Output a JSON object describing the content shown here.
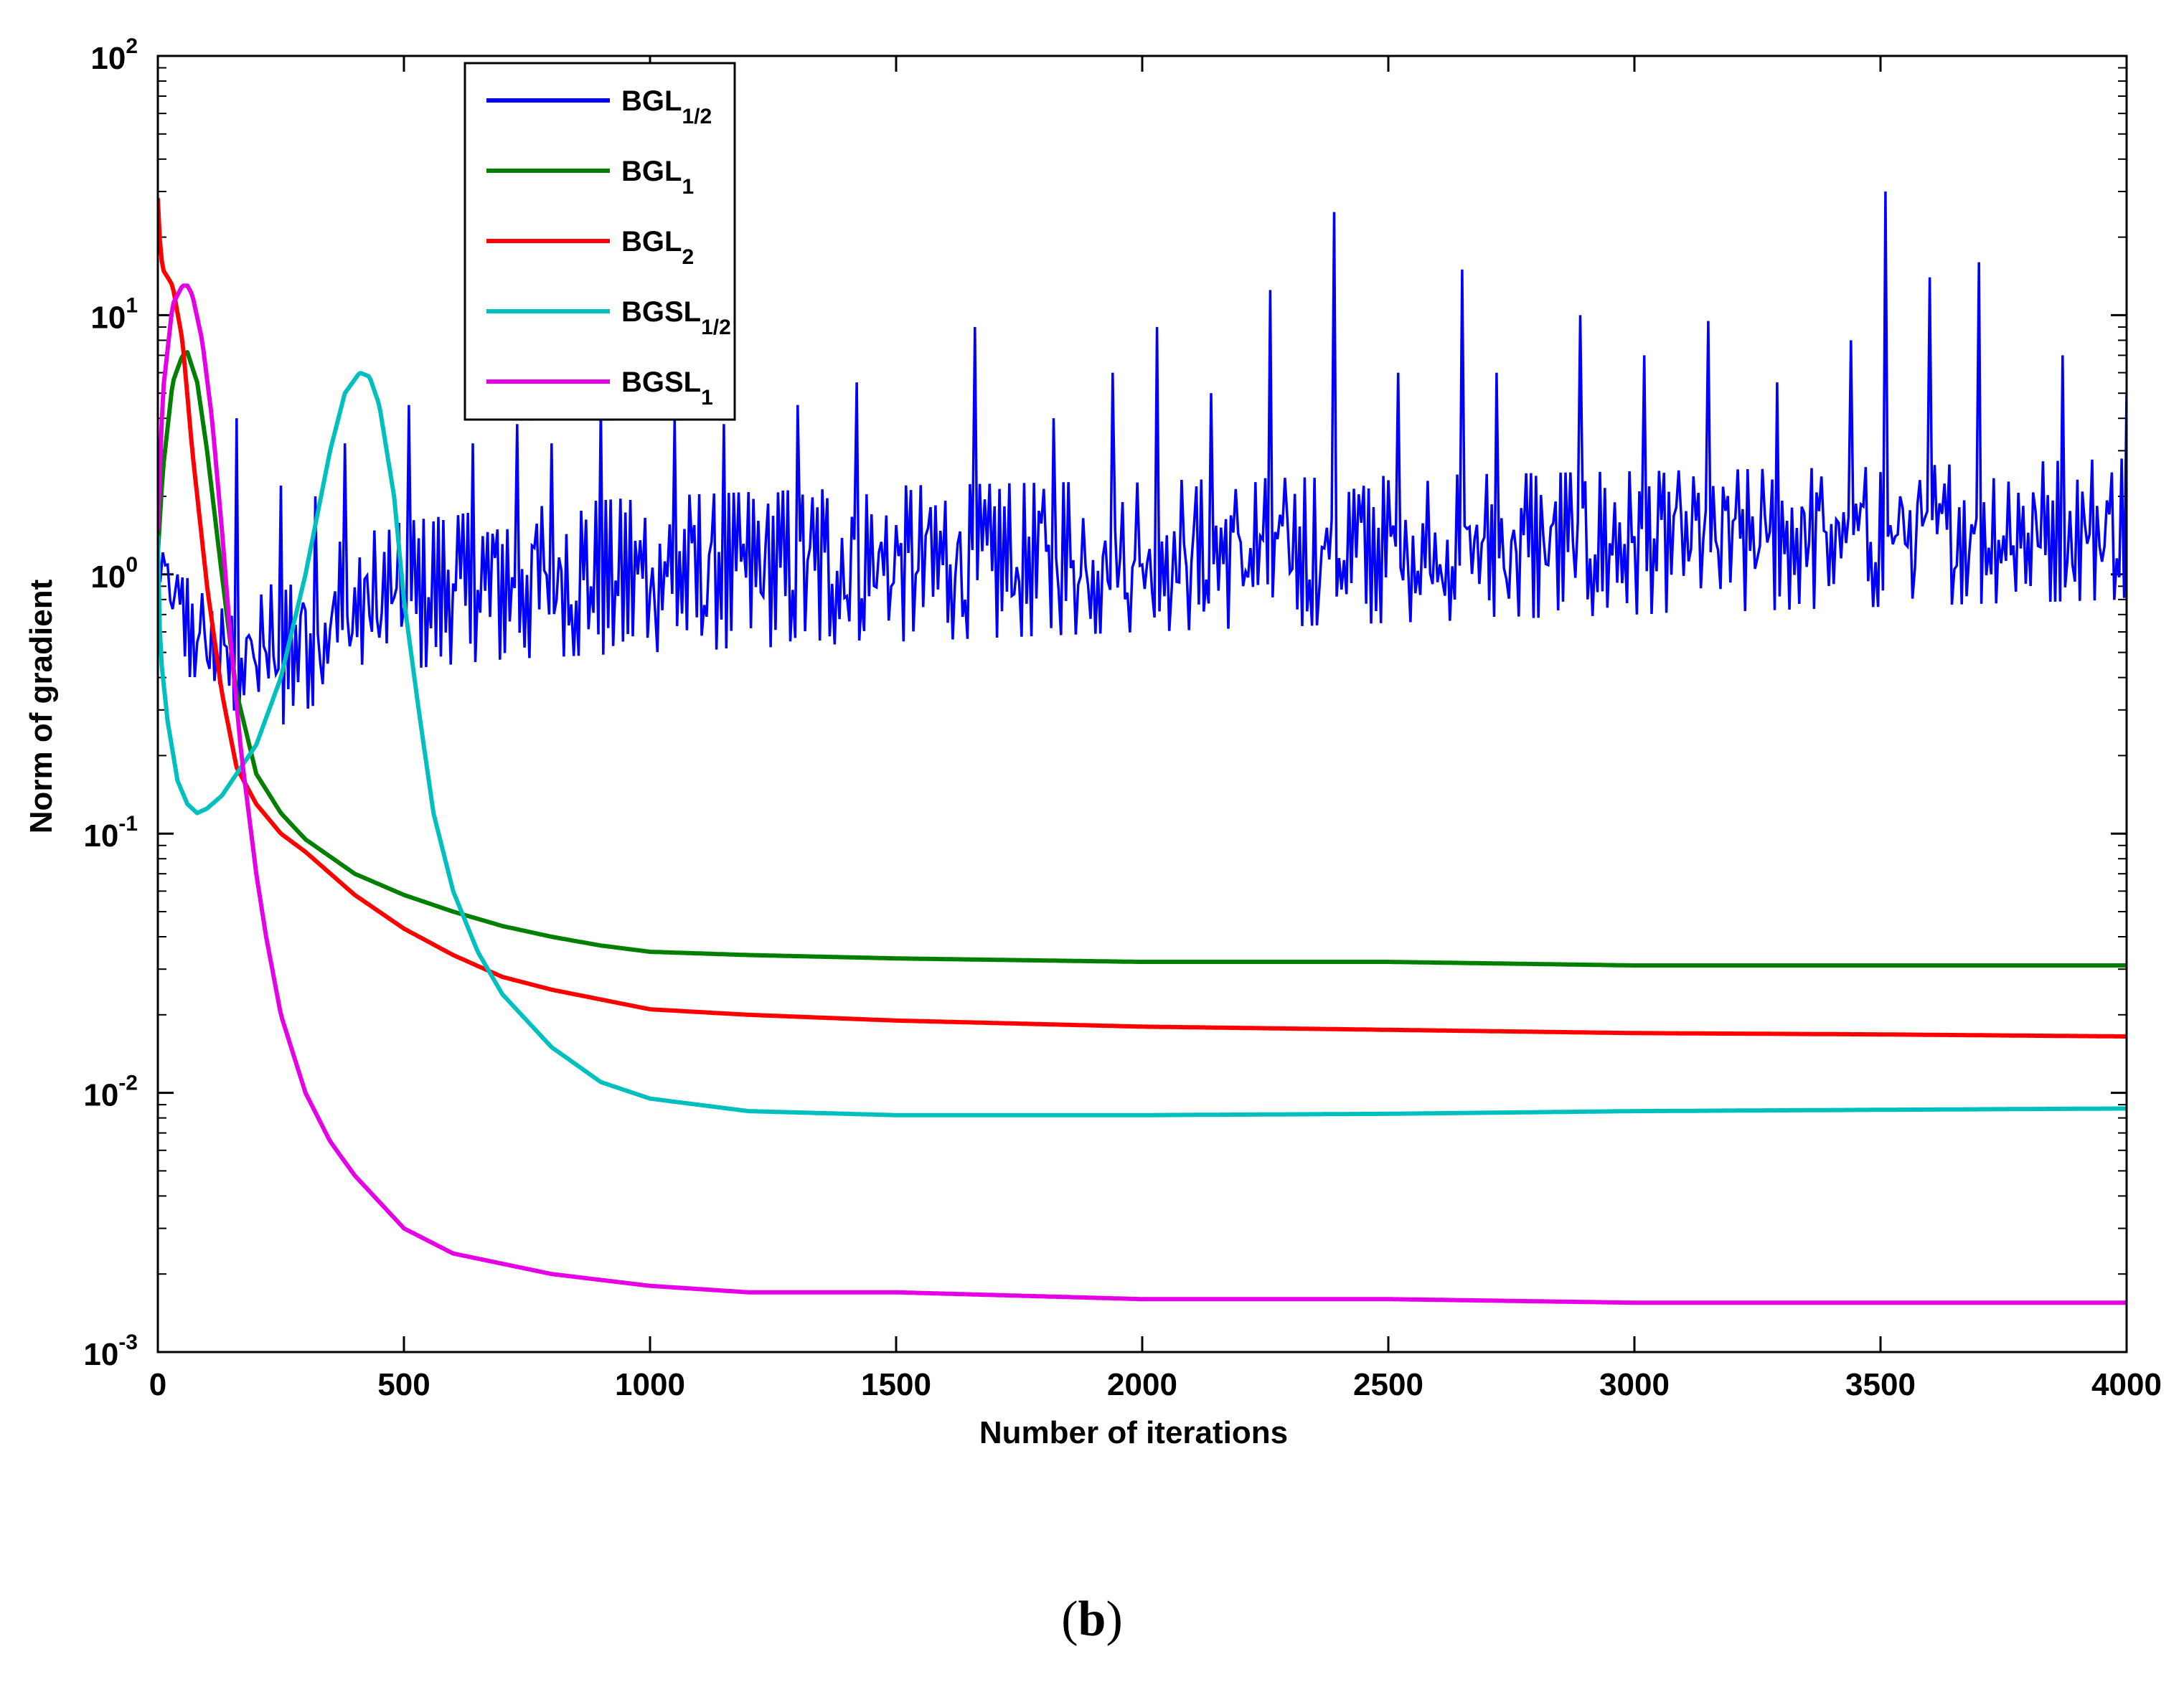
{
  "caption": {
    "prefix": "(",
    "letter": "b",
    "suffix": ")"
  },
  "chart_data": {
    "type": "line",
    "title": "",
    "xlabel": "Number of iterations",
    "ylabel": "Norm of gradient",
    "xlim": [
      0,
      4000
    ],
    "ylim": [
      0.001,
      100
    ],
    "yscale": "log",
    "xticks": [
      0,
      500,
      1000,
      1500,
      2000,
      2500,
      3000,
      3500,
      4000
    ],
    "xtick_labels": [
      "0",
      "500",
      "1000",
      "1500",
      "2000",
      "2500",
      "3000",
      "3500",
      "4000"
    ],
    "yticks": [
      0.001,
      0.01,
      0.1,
      1,
      10,
      100
    ],
    "ytick_labels": [
      {
        "base": "10",
        "exp": "-3"
      },
      {
        "base": "10",
        "exp": "-2"
      },
      {
        "base": "10",
        "exp": "-1"
      },
      {
        "base": "10",
        "exp": "0"
      },
      {
        "base": "10",
        "exp": "1"
      },
      {
        "base": "10",
        "exp": "2"
      }
    ],
    "legend_position": "top-left",
    "series": [
      {
        "name": "BGL1/2",
        "label_main": "BGL",
        "label_sub": "1/2",
        "color": "#0000ff",
        "style": "noisy",
        "x": [
          0,
          20,
          60,
          100,
          150,
          200,
          250,
          300,
          400,
          500,
          700,
          1000,
          1500,
          2000,
          2500,
          3000,
          3500,
          4000
        ],
        "lower": [
          1.0,
          0.6,
          0.4,
          0.35,
          0.3,
          0.27,
          0.26,
          0.3,
          0.38,
          0.43,
          0.47,
          0.5,
          0.55,
          0.6,
          0.65,
          0.7,
          0.75,
          0.8
        ],
        "upper": [
          1.5,
          1.2,
          1.0,
          0.8,
          0.7,
          0.8,
          1.0,
          1.2,
          1.4,
          1.6,
          1.8,
          2.0,
          2.2,
          2.3,
          2.4,
          2.5,
          2.6,
          2.8
        ],
        "spikes": [
          [
            160,
            4
          ],
          [
            250,
            2.2
          ],
          [
            320,
            2.0
          ],
          [
            380,
            3.2
          ],
          [
            510,
            4.5
          ],
          [
            640,
            3.2
          ],
          [
            730,
            3.8
          ],
          [
            800,
            3.2
          ],
          [
            900,
            4.5
          ],
          [
            1050,
            4.0
          ],
          [
            1150,
            3.8
          ],
          [
            1300,
            4.5
          ],
          [
            1420,
            5.5
          ],
          [
            1660,
            9.0
          ],
          [
            1820,
            4.0
          ],
          [
            1940,
            6.0
          ],
          [
            2030,
            9.0
          ],
          [
            2140,
            5.0
          ],
          [
            2260,
            12.5
          ],
          [
            2390,
            25.0
          ],
          [
            2520,
            6.0
          ],
          [
            2650,
            15.0
          ],
          [
            2720,
            6.0
          ],
          [
            2890,
            10.0
          ],
          [
            3020,
            7.0
          ],
          [
            3150,
            9.5
          ],
          [
            3290,
            5.5
          ],
          [
            3440,
            8.0
          ],
          [
            3510,
            30.0
          ],
          [
            3600,
            14.0
          ],
          [
            3700,
            16.0
          ],
          [
            3870,
            7.0
          ],
          [
            4000,
            5.0
          ]
        ]
      },
      {
        "name": "BGL1",
        "label_main": "BGL",
        "label_sub": "1",
        "color": "#007f00",
        "style": "smooth",
        "x": [
          0,
          10,
          30,
          50,
          60,
          80,
          100,
          130,
          160,
          200,
          250,
          300,
          400,
          500,
          600,
          700,
          800,
          900,
          1000,
          1200,
          1500,
          2000,
          2500,
          3000,
          3500,
          4000
        ],
        "y": [
          1.2,
          2.5,
          5.5,
          7.0,
          7.2,
          5.5,
          3.0,
          1.0,
          0.35,
          0.17,
          0.12,
          0.095,
          0.07,
          0.058,
          0.05,
          0.044,
          0.04,
          0.037,
          0.035,
          0.034,
          0.033,
          0.032,
          0.032,
          0.031,
          0.031,
          0.031
        ]
      },
      {
        "name": "BGL2",
        "label_main": "BGL",
        "label_sub": "2",
        "color": "#ff0000",
        "style": "smooth",
        "x": [
          0,
          5,
          10,
          20,
          30,
          50,
          70,
          100,
          130,
          160,
          200,
          250,
          300,
          400,
          500,
          600,
          700,
          800,
          1000,
          1200,
          1500,
          2000,
          2500,
          3000,
          3500,
          4000
        ],
        "y": [
          28,
          18,
          15,
          14,
          13,
          8,
          3.0,
          0.9,
          0.35,
          0.18,
          0.13,
          0.1,
          0.085,
          0.058,
          0.043,
          0.034,
          0.028,
          0.025,
          0.021,
          0.02,
          0.019,
          0.018,
          0.0175,
          0.017,
          0.0168,
          0.0165
        ]
      },
      {
        "name": "BGSL1/2",
        "label_main": "BGSL",
        "label_sub": "1/2",
        "color": "#00bfbf",
        "style": "smooth",
        "x": [
          0,
          5,
          20,
          40,
          60,
          80,
          100,
          130,
          160,
          200,
          250,
          300,
          350,
          380,
          410,
          430,
          450,
          480,
          500,
          530,
          560,
          600,
          650,
          700,
          800,
          900,
          1000,
          1200,
          1500,
          2000,
          2500,
          3000,
          3500,
          4000
        ],
        "y": [
          1.4,
          0.5,
          0.27,
          0.16,
          0.13,
          0.12,
          0.125,
          0.14,
          0.17,
          0.22,
          0.4,
          1.0,
          3.0,
          5.0,
          6.0,
          5.8,
          4.5,
          2.0,
          0.8,
          0.3,
          0.12,
          0.06,
          0.035,
          0.024,
          0.015,
          0.011,
          0.0095,
          0.0085,
          0.0082,
          0.0082,
          0.0083,
          0.0085,
          0.0086,
          0.0087
        ]
      },
      {
        "name": "BGSL1",
        "label_main": "BGSL",
        "label_sub": "1",
        "color": "#e600e6",
        "style": "smooth",
        "x": [
          0,
          10,
          30,
          50,
          60,
          70,
          90,
          110,
          130,
          150,
          170,
          200,
          220,
          250,
          300,
          350,
          400,
          500,
          600,
          800,
          1000,
          1200,
          1500,
          2000,
          2500,
          3000,
          3500,
          4000
        ],
        "y": [
          1.5,
          5.0,
          11.0,
          13.0,
          13.0,
          12.0,
          8.0,
          4.0,
          1.5,
          0.5,
          0.2,
          0.07,
          0.04,
          0.02,
          0.01,
          0.0065,
          0.0048,
          0.003,
          0.0024,
          0.002,
          0.0018,
          0.0017,
          0.0017,
          0.0016,
          0.0016,
          0.00155,
          0.00155,
          0.00155
        ]
      }
    ]
  }
}
